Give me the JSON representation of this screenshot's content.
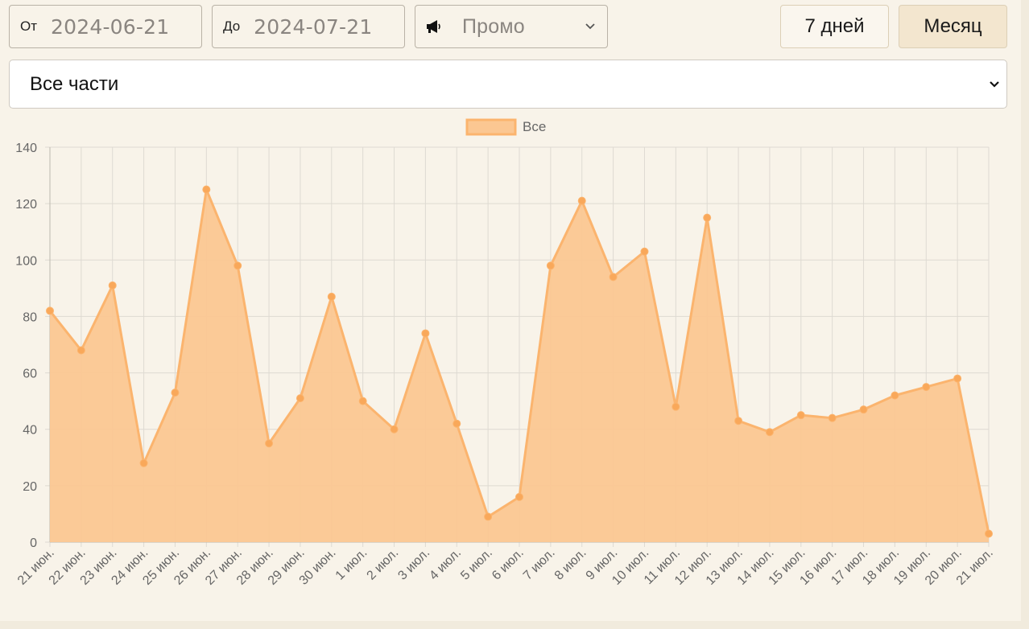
{
  "filters": {
    "from_label": "От",
    "from_value": "2024-06-21",
    "to_label": "До",
    "to_value": "2024-07-21",
    "promo_value": "Промо",
    "promo_icon": "megaphone-icon"
  },
  "range_buttons": {
    "week_label": "7 дней",
    "month_label": "Месяц"
  },
  "parts_select": {
    "selected": "Все части"
  },
  "colors": {
    "area_fill": "#fbc792",
    "line": "#fbb46e",
    "point": "#f9a85a",
    "grid": "#dedad2",
    "active_button": "#f3e6cf"
  },
  "chart_data": {
    "type": "area",
    "categories": [
      "21 июн.",
      "22 июн.",
      "23 июн.",
      "24 июн.",
      "25 июн.",
      "26 июн.",
      "27 июн.",
      "28 июн.",
      "29 июн.",
      "30 июн.",
      "1 июл.",
      "2 июл.",
      "3 июл.",
      "4 июл.",
      "5 июл.",
      "6 июл.",
      "7 июл.",
      "8 июл.",
      "9 июл.",
      "10 июл.",
      "11 июл.",
      "12 июл.",
      "13 июл.",
      "14 июл.",
      "15 июл.",
      "16 июл.",
      "17 июл.",
      "18 июл.",
      "19 июл.",
      "20 июл.",
      "21 июл."
    ],
    "series": [
      {
        "name": "Все",
        "values": [
          82,
          68,
          91,
          28,
          53,
          125,
          98,
          35,
          51,
          87,
          50,
          40,
          74,
          42,
          9,
          16,
          98,
          121,
          94,
          103,
          48,
          115,
          43,
          39,
          45,
          44,
          47,
          52,
          55,
          58,
          3
        ]
      }
    ],
    "ylim": [
      0,
      140
    ],
    "yticks": [
      0,
      20,
      40,
      60,
      80,
      100,
      120,
      140
    ],
    "grid": true,
    "legend_position": "top-center"
  }
}
